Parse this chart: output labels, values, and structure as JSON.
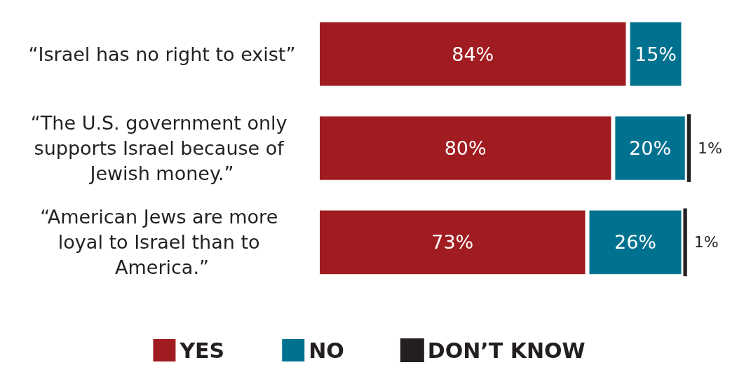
{
  "chart_data": {
    "type": "bar",
    "orientation": "horizontal",
    "stacked": true,
    "categories": [
      "“Israel has no right to exist”",
      "“The U.S. government only supports Israel because of Jewish money.”",
      "“American Jews are more loyal to Israel than to America.”"
    ],
    "series": [
      {
        "name": "YES",
        "color": "#a01c20",
        "values": [
          84,
          80,
          73
        ],
        "value_labels": [
          "84%",
          "80%",
          "73%"
        ]
      },
      {
        "name": "NO",
        "color": "#00728f",
        "values": [
          15,
          20,
          26
        ],
        "value_labels": [
          "15%",
          "20%",
          "26%"
        ]
      },
      {
        "name": "DON’T KNOW",
        "color": "#231f20",
        "values": [
          null,
          1,
          1
        ],
        "value_labels": [
          null,
          "1%",
          "1%"
        ]
      }
    ],
    "xlim": [
      0,
      101
    ],
    "legend": "bottom"
  }
}
